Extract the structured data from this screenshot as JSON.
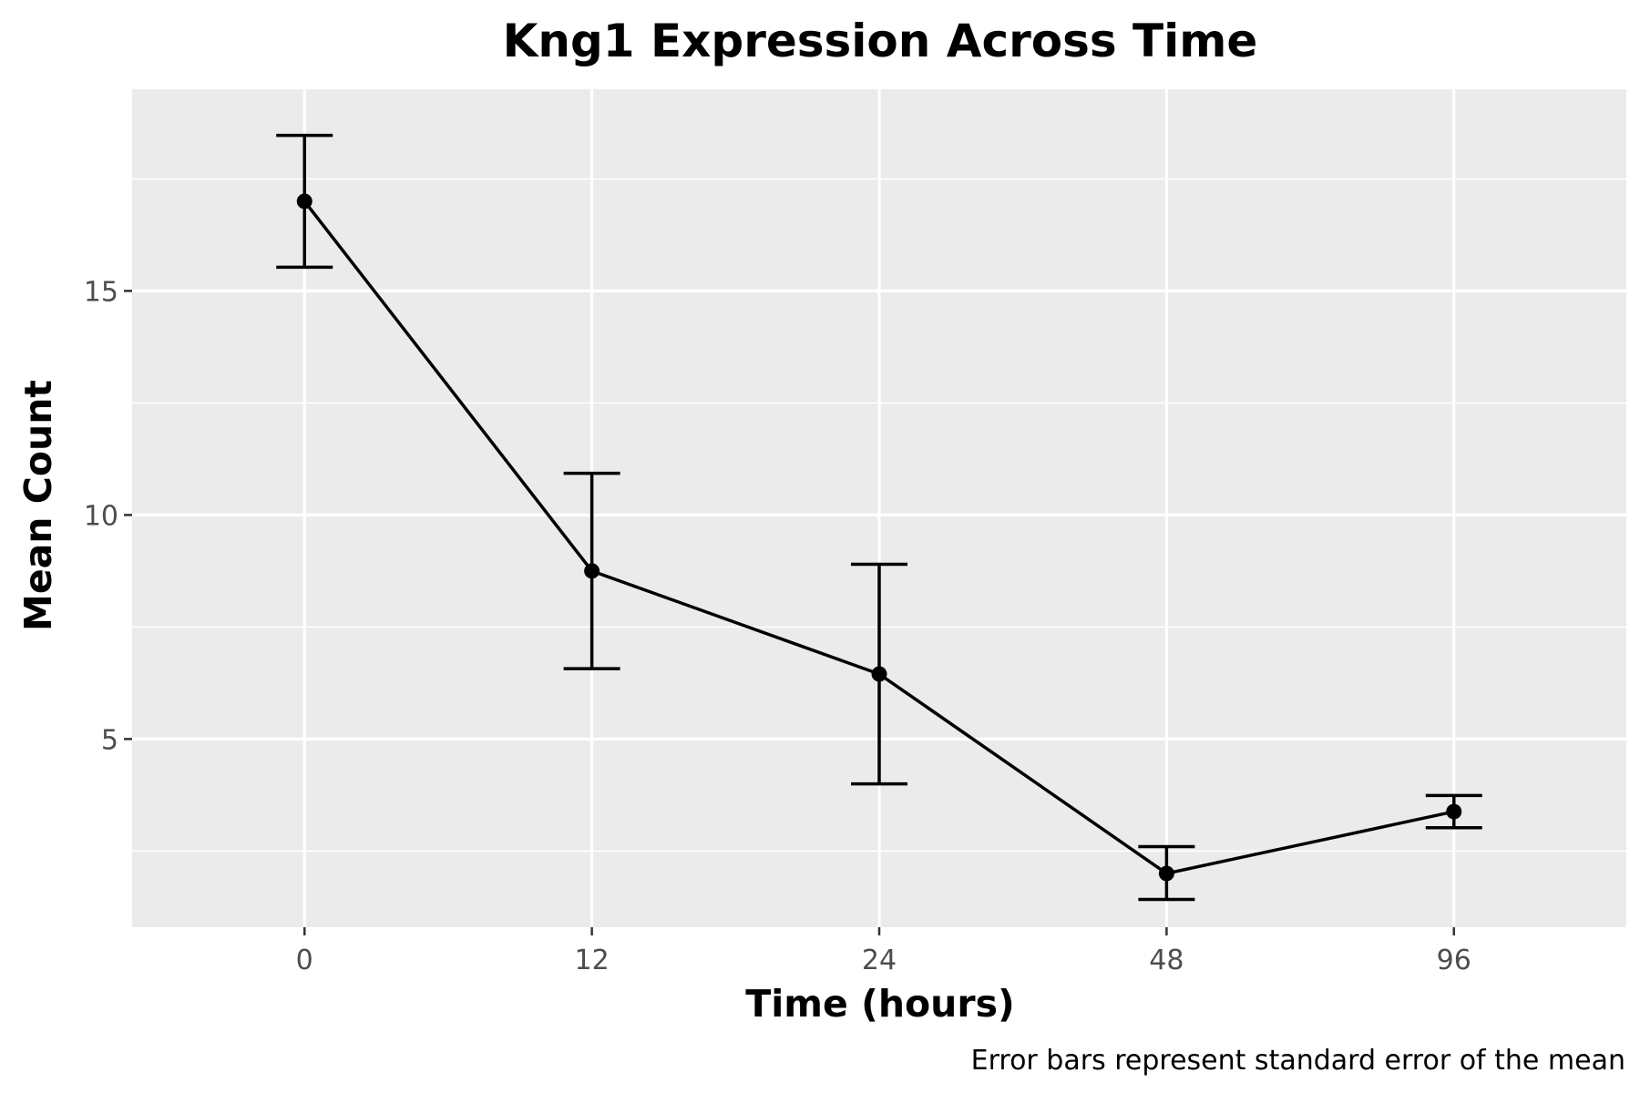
{
  "chart_data": {
    "type": "line",
    "title": "Kng1 Expression Across Time",
    "xlabel": "Time (hours)",
    "ylabel": "Mean Count",
    "caption": "Error bars represent standard error of the mean",
    "categories": [
      "0",
      "12",
      "24",
      "48",
      "96"
    ],
    "y_ticks": [
      5,
      10,
      15
    ],
    "ylim": [
      0.8,
      19.5
    ],
    "grid": true,
    "series": [
      {
        "values": [
          17.0,
          8.75,
          6.45,
          2.0,
          3.38
        ],
        "error_low": [
          15.53,
          6.57,
          4.0,
          1.42,
          3.02
        ],
        "error_high": [
          18.47,
          10.93,
          8.9,
          2.6,
          3.74
        ]
      }
    ],
    "colors": {
      "panel": "#ebebeb",
      "grid": "#ffffff",
      "line": "#000000",
      "tick_text": "#4d4d4d"
    }
  }
}
